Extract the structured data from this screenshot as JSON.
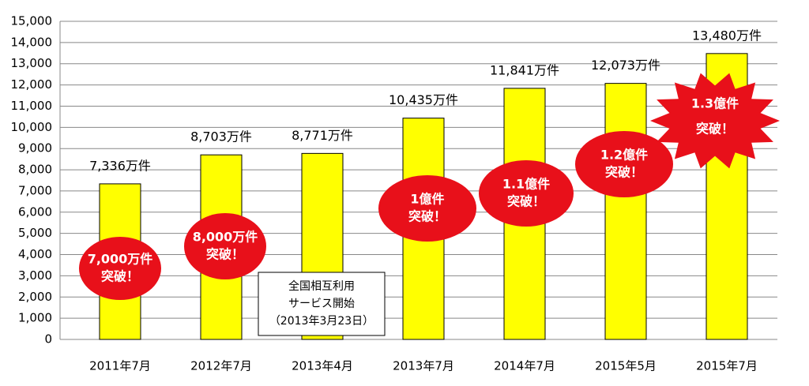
{
  "chart_data": {
    "type": "bar",
    "categories": [
      "2011年7月",
      "2012年7月",
      "2013年4月",
      "2013年7月",
      "2014年7月",
      "2015年5月",
      "2015年7月"
    ],
    "values": [
      7336,
      8703,
      8771,
      10435,
      11841,
      12073,
      13480
    ],
    "value_labels": [
      "7,336万件",
      "8,703万件",
      "8,771万件",
      "10,435万件",
      "11,841万件",
      "12,073万件",
      "13,480万件"
    ],
    "color": "#ffff00",
    "ylim": [
      0,
      15000
    ],
    "yticks": [
      0,
      {
        "value": 1000,
        "label": "1,000"
      },
      {
        "value": 2000,
        "label": "2,000"
      },
      {
        "value": 3000,
        "label": "3,000"
      },
      {
        "value": 4000,
        "label": "4,000"
      },
      {
        "value": 5000,
        "label": "5,000"
      },
      {
        "value": 6000,
        "label": "6,000"
      },
      {
        "value": 7000,
        "label": "7,000"
      },
      {
        "value": 8000,
        "label": "8,000"
      },
      {
        "value": 9000,
        "label": "9,000"
      },
      {
        "value": 10000,
        "label": "10,000"
      },
      {
        "value": 11000,
        "label": "11,000"
      },
      {
        "value": 12000,
        "label": "12,000"
      },
      {
        "value": 13000,
        "label": "13,000"
      },
      {
        "value": 14000,
        "label": "14,000"
      },
      {
        "value": 15000,
        "label": "15,000"
      }
    ],
    "grid": true,
    "annotations": [
      {
        "lines": [
          "7,000万件",
          "突破！"
        ]
      },
      {
        "lines": [
          "8,000万件",
          "突破！"
        ]
      },
      {
        "lines": [
          "1億件",
          "突破！"
        ]
      },
      {
        "lines": [
          "1.1億件",
          "突破！"
        ]
      },
      {
        "lines": [
          "1.2億件",
          "突破！"
        ]
      },
      {
        "lines": [
          "1.3億件",
          "突破！"
        ]
      },
      {
        "lines": [
          "全国相互利用",
          "サービス開始",
          "（2013年3月23日）"
        ]
      }
    ]
  }
}
